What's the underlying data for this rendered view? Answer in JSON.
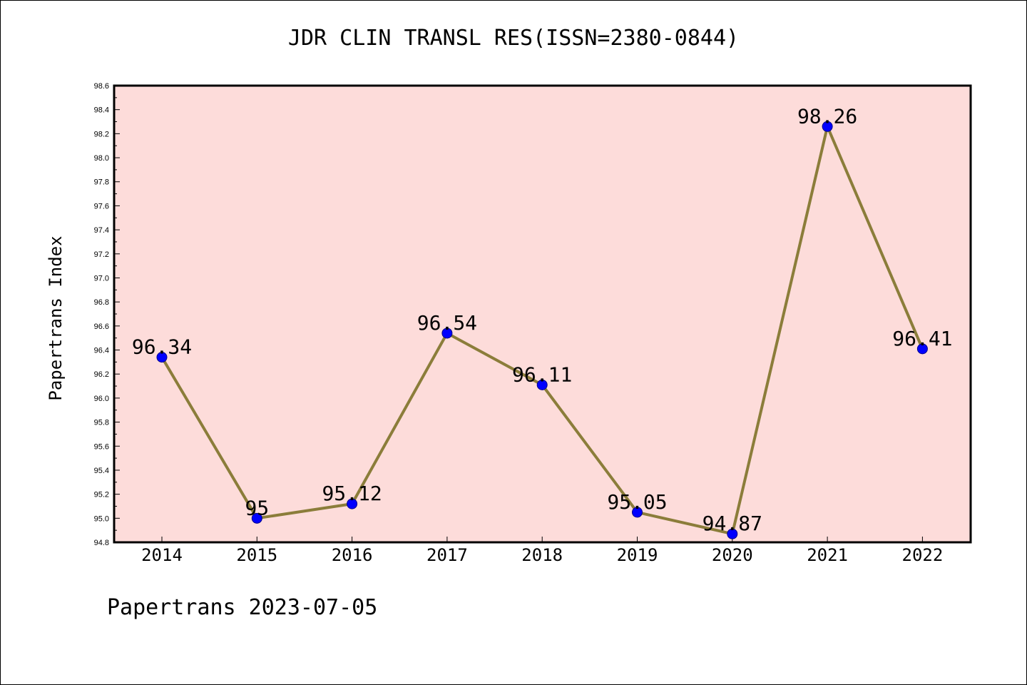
{
  "chart_data": {
    "type": "line",
    "title": "JDR CLIN TRANSL RES(ISSN=2380-0844)",
    "xlabel": "",
    "ylabel": "Papertrans Index",
    "categories": [
      "2014",
      "2015",
      "2016",
      "2017",
      "2018",
      "2019",
      "2020",
      "2021",
      "2022"
    ],
    "series": [
      {
        "values": [
          96.34,
          95,
          95.12,
          96.54,
          96.11,
          95.05,
          94.87,
          98.26,
          96.41
        ],
        "data_labels": [
          "96.34",
          "95",
          "95.12",
          "96.54",
          "96.11",
          "95.05",
          "94.87",
          "98.26",
          "96.41"
        ],
        "line_color": "#8b7d3a",
        "marker_color": "#0000ff"
      }
    ],
    "ylim": [
      94.8,
      98.6
    ],
    "yticks": [
      "94.8",
      "95.0",
      "95.2",
      "95.4",
      "95.6",
      "95.8",
      "96.0",
      "96.2",
      "96.4",
      "96.6",
      "96.8",
      "97.0",
      "97.2",
      "97.4",
      "97.6",
      "97.8",
      "98.0",
      "98.2",
      "98.4",
      "98.6"
    ],
    "plot_background": "#fddcda",
    "grid": false
  },
  "footer": "Papertrans 2023-07-05"
}
